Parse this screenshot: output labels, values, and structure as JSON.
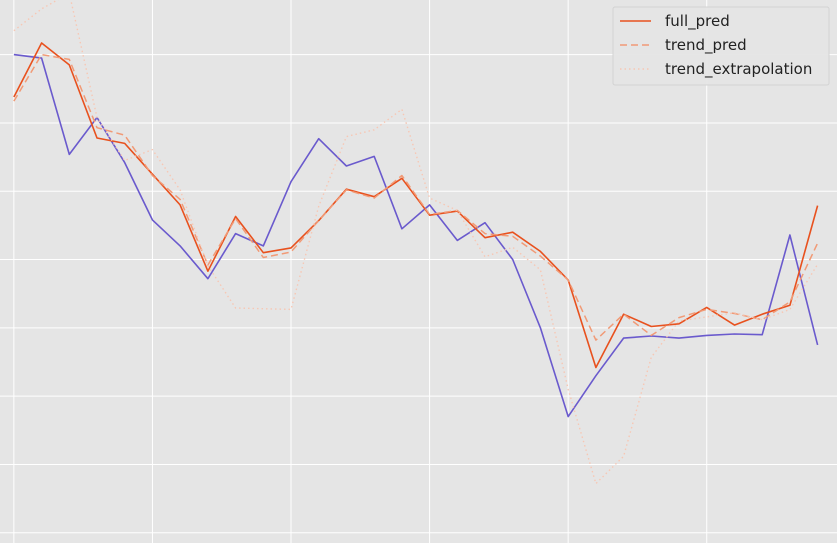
{
  "chart_data": {
    "type": "line",
    "title": "",
    "xlabel": "",
    "ylabel": "",
    "xlim": [
      -0.5,
      29.7
    ],
    "ylim": [
      -7.15,
      0.8
    ],
    "grid": true,
    "legend_position": "top-right",
    "x": [
      0,
      1,
      2,
      3,
      4,
      5,
      6,
      7,
      8,
      9,
      10,
      11,
      12,
      13,
      14,
      15,
      16,
      17,
      18,
      19,
      20,
      21,
      22,
      23,
      24,
      25,
      26,
      27,
      28,
      29
    ],
    "series": [
      {
        "name": "",
        "color": "#6a5acd",
        "style": "solid",
        "values": [
          0.0,
          -0.05,
          -1.46,
          -0.92,
          -1.58,
          -2.42,
          -2.8,
          -3.28,
          -2.62,
          -2.8,
          -1.86,
          -1.23,
          -1.63,
          -1.49,
          -2.55,
          -2.2,
          -2.72,
          -2.46,
          -3.0,
          -4.0,
          -5.3,
          -4.7,
          -4.15,
          -4.12,
          -4.15,
          -4.11,
          -4.09,
          -4.1,
          -2.64,
          -4.25
        ]
      },
      {
        "name": "full_pred",
        "color": "#e8511e",
        "style": "solid",
        "values": [
          -0.62,
          0.17,
          -0.15,
          -1.22,
          -1.3,
          -1.75,
          -2.2,
          -3.17,
          -2.37,
          -2.9,
          -2.83,
          -2.43,
          -1.97,
          -2.08,
          -1.81,
          -2.35,
          -2.29,
          -2.68,
          -2.6,
          -2.88,
          -3.3,
          -4.58,
          -3.8,
          -3.98,
          -3.94,
          -3.7,
          -3.96,
          -3.8,
          -3.67,
          -2.21
        ]
      },
      {
        "name": "trend_pred",
        "color": "#f19a76",
        "style": "dashed",
        "values": [
          -0.68,
          0.0,
          -0.07,
          -1.07,
          -1.18,
          -1.77,
          -2.12,
          -3.08,
          -2.4,
          -2.97,
          -2.89,
          -2.43,
          -1.98,
          -2.1,
          -1.77,
          -2.34,
          -2.28,
          -2.62,
          -2.66,
          -2.95,
          -3.3,
          -4.18,
          -3.8,
          -4.11,
          -3.85,
          -3.73,
          -3.79,
          -3.88,
          -3.62,
          -2.76
        ]
      },
      {
        "name": "trend_extrapolation",
        "color": "#f7c7b4",
        "style": "dotted",
        "values": [
          0.35,
          0.67,
          0.9,
          -0.92,
          -1.55,
          -1.39,
          -1.98,
          -3.09,
          -3.71,
          -3.72,
          -3.73,
          -2.22,
          -1.2,
          -1.1,
          -0.8,
          -2.1,
          -2.28,
          -2.96,
          -2.82,
          -3.15,
          -4.9,
          -6.28,
          -5.88,
          -4.43,
          -3.9,
          -3.84,
          -3.78,
          -3.88,
          -3.73,
          -3.07
        ]
      }
    ]
  }
}
